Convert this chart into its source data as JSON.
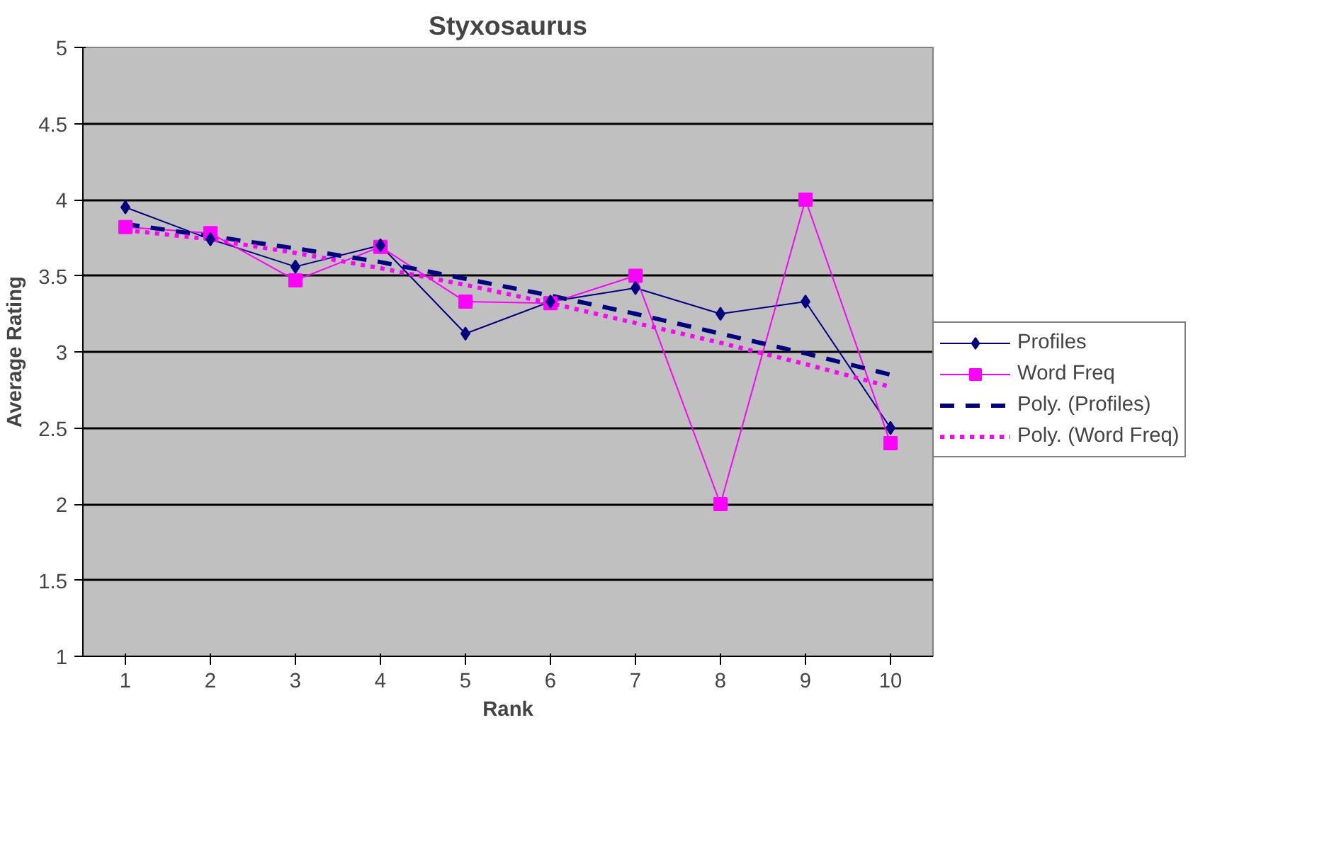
{
  "chart_data": {
    "type": "line",
    "title": "Styxosaurus",
    "xlabel": "Rank",
    "ylabel": "Average Rating",
    "categories": [
      "1",
      "2",
      "3",
      "4",
      "5",
      "6",
      "7",
      "8",
      "9",
      "10"
    ],
    "ylim": [
      1,
      5
    ],
    "yticks": [
      1,
      1.5,
      2,
      2.5,
      3,
      3.5,
      4,
      4.5,
      5
    ],
    "grid": "y",
    "legend": "right",
    "series": [
      {
        "name": "Profiles",
        "color": "#000080",
        "marker": "diamond",
        "line_style": "solid",
        "values": [
          3.95,
          3.74,
          3.56,
          3.7,
          3.12,
          3.33,
          3.42,
          3.25,
          3.33,
          2.5
        ]
      },
      {
        "name": "Word Freq",
        "color": "#ff00ff",
        "marker": "square",
        "line_style": "solid",
        "values": [
          3.82,
          3.78,
          3.47,
          3.69,
          3.33,
          3.32,
          3.5,
          2.0,
          4.0,
          2.4
        ]
      },
      {
        "name": "Poly. (Profiles)",
        "color": "#000080",
        "marker": "none",
        "line_style": "dashed",
        "values": [
          3.84,
          3.76,
          3.68,
          3.59,
          3.48,
          3.37,
          3.25,
          3.12,
          2.99,
          2.85
        ]
      },
      {
        "name": "Poly. (Word Freq)",
        "color": "#ff00ff",
        "marker": "none",
        "line_style": "dotted",
        "values": [
          3.8,
          3.74,
          3.65,
          3.55,
          3.44,
          3.32,
          3.19,
          3.06,
          2.92,
          2.77
        ]
      }
    ]
  }
}
